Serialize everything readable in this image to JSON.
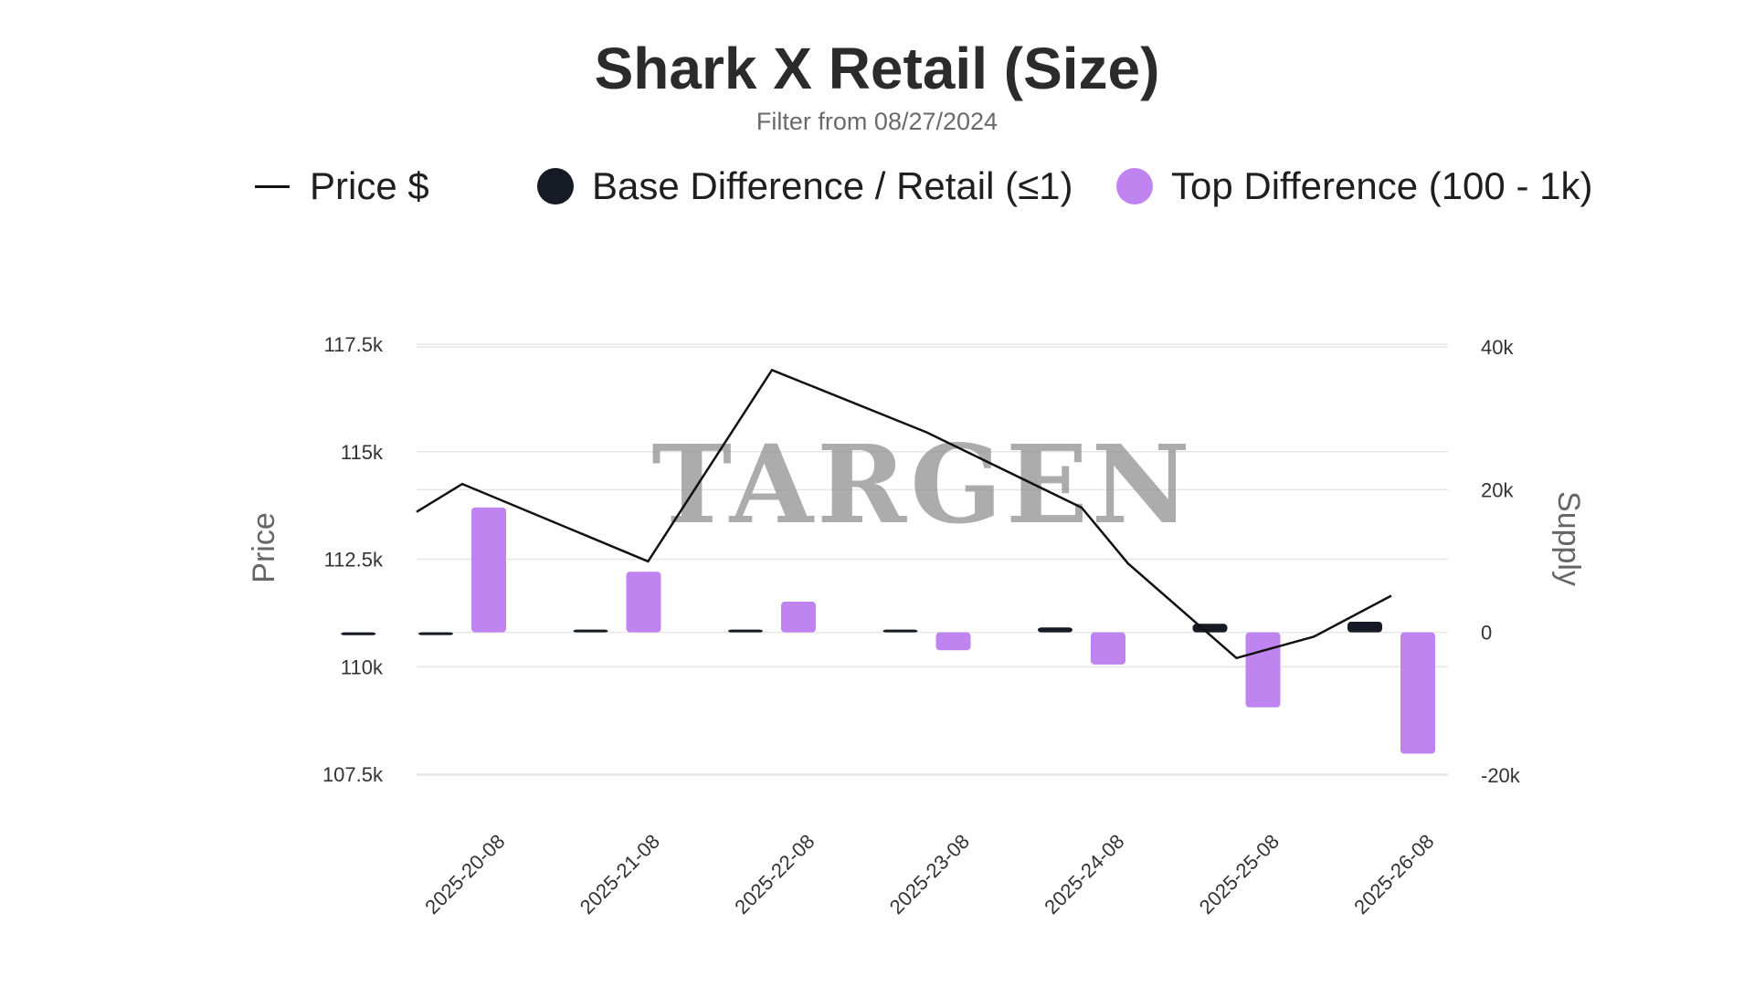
{
  "chart_data": {
    "type": "bar",
    "title": "Shark X Retail (Size)",
    "subtitle": "Filter from 08/27/2024",
    "watermark": "TARGEN",
    "categories": [
      "2025-20-08",
      "2025-21-08",
      "2025-22-08",
      "2025-23-08",
      "2025-24-08",
      "2025-25-08",
      "2025-26-08"
    ],
    "left_axis": {
      "label": "Price",
      "ticks": [
        107500,
        110000,
        112500,
        115000,
        117500
      ],
      "tick_labels": [
        "107.5k",
        "110k",
        "112.5k",
        "115k",
        "117.5k"
      ],
      "range": [
        107500,
        117500
      ]
    },
    "right_axis": {
      "label": "Supply",
      "ticks": [
        -20000,
        0,
        20000,
        40000
      ],
      "tick_labels": [
        "-20k",
        "0",
        "20k",
        "40k"
      ],
      "range": [
        -20000,
        40000
      ]
    },
    "line_series": {
      "name": "Price $",
      "color": "#111111",
      "x": [
        -0.5,
        0,
        1.2,
        2,
        3,
        4,
        4.3,
        5,
        5.5,
        6
      ],
      "values": [
        113600,
        114250,
        112450,
        116900,
        115450,
        113700,
        112400,
        110200,
        110700,
        111650
      ]
    },
    "series": [
      {
        "name": "Base Difference / Retail (≤1)",
        "color": "#161a24",
        "values": [
          -200,
          100,
          200,
          300,
          700,
          1200,
          1500
        ]
      },
      {
        "name": "Top Difference (100 - 1k)",
        "color": "#c084f0",
        "values": [
          17500,
          8500,
          4300,
          -2500,
          -4500,
          -10500,
          -17000
        ]
      }
    ],
    "extra_marks": [
      {
        "series": "Base Difference / Retail (≤1)",
        "position": -0.5,
        "value": -400
      }
    ],
    "legend_position": "top",
    "grid": true
  }
}
